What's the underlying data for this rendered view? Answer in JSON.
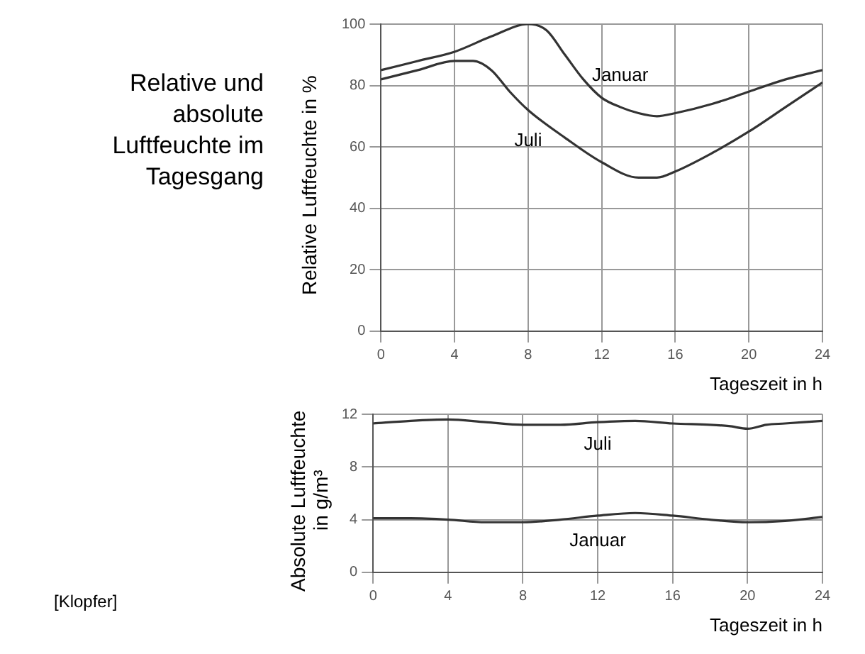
{
  "chart_data": [
    {
      "type": "line",
      "title": "Relative und absolute Luftfeuchte im Tagesgang",
      "xlabel": "Tageszeit in h",
      "ylabel": "Relative Luftfeuchte in %",
      "xlim": [
        0,
        24
      ],
      "xticks": [
        0,
        4,
        8,
        12,
        16,
        20,
        24
      ],
      "ylim": [
        0,
        100
      ],
      "yticks": [
        0,
        20,
        40,
        60,
        80,
        100
      ],
      "grid": true,
      "legend": false,
      "marker": "none",
      "line_style": "solid",
      "series": [
        {
          "name": "Januar",
          "color": "#333333",
          "x": [
            0,
            2,
            4,
            6,
            8,
            9,
            10,
            11,
            12,
            13,
            14,
            15,
            16,
            18,
            20,
            22,
            24
          ],
          "values": [
            85,
            88,
            91,
            96,
            100,
            98,
            90,
            82,
            76,
            73,
            71,
            70,
            71,
            74,
            78,
            82,
            85
          ]
        },
        {
          "name": "Juli",
          "color": "#333333",
          "x": [
            0,
            2,
            4,
            5,
            6,
            7,
            8,
            10,
            12,
            14,
            15,
            16,
            18,
            20,
            22,
            24
          ],
          "values": [
            82,
            85,
            88,
            88,
            85,
            78,
            72,
            63,
            55,
            50,
            50,
            52,
            58,
            65,
            73,
            81
          ]
        }
      ]
    },
    {
      "type": "line",
      "xlabel": "Tageszeit in h",
      "ylabel": "Absolute Luftfeuchte in g/m³",
      "annotations": [
        "[Klopfer]"
      ],
      "xlim": [
        0,
        24
      ],
      "xticks": [
        0,
        4,
        8,
        12,
        16,
        20,
        24
      ],
      "ylim": [
        0,
        12
      ],
      "yticks": [
        0,
        4,
        8,
        12
      ],
      "grid": true,
      "legend": false,
      "marker": "none",
      "line_style": "solid",
      "series": [
        {
          "name": "Juli",
          "color": "#333333",
          "x": [
            0,
            2,
            4,
            6,
            8,
            10,
            12,
            14,
            16,
            18,
            19,
            20,
            21,
            22,
            24
          ],
          "values": [
            11.3,
            11.5,
            11.6,
            11.4,
            11.2,
            11.2,
            11.4,
            11.5,
            11.3,
            11.2,
            11.1,
            10.9,
            11.2,
            11.3,
            11.5
          ]
        },
        {
          "name": "Januar",
          "color": "#333333",
          "x": [
            0,
            2,
            4,
            6,
            8,
            10,
            12,
            14,
            16,
            18,
            20,
            22,
            24
          ],
          "values": [
            4.1,
            4.1,
            4.0,
            3.8,
            3.8,
            4.0,
            4.3,
            4.5,
            4.3,
            4.0,
            3.8,
            3.9,
            4.2
          ]
        }
      ]
    }
  ]
}
